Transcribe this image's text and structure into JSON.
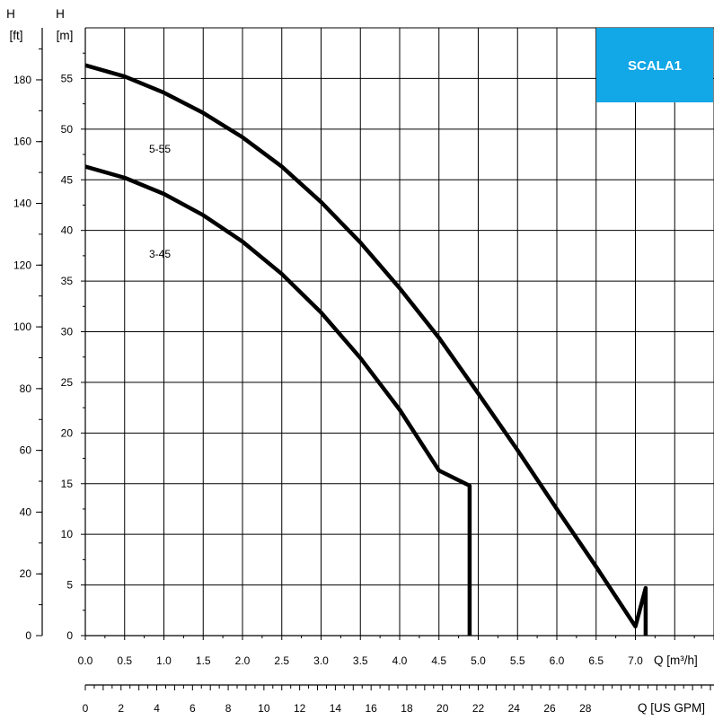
{
  "chart_data": {
    "type": "line",
    "badge": {
      "text": "SCALA1",
      "color": "#12a7e6",
      "position": "top-right"
    },
    "x_axis": {
      "label": "Q [m³/h]",
      "ticks": [
        0,
        0.5,
        1,
        1.5,
        2,
        2.5,
        3,
        3.5,
        4,
        4.5,
        5,
        5.5,
        6,
        6.5,
        7,
        7.5,
        8
      ],
      "tick_labels": [
        "0.0",
        "0.5",
        "1.0",
        "1.5",
        "2.0",
        "2.5",
        "3.0",
        "3.5",
        "4.0",
        "4.5",
        "5.0",
        "5.5",
        "6.0",
        "6.5",
        "7.0"
      ],
      "range": [
        0,
        8
      ],
      "grid": true
    },
    "x2_axis": {
      "label": "Q [US GPM]",
      "tick_labels": [
        "0",
        "2",
        "4",
        "6",
        "8",
        "10",
        "12",
        "14",
        "16",
        "18",
        "20",
        "22",
        "24",
        "26",
        "28"
      ],
      "major_values": [
        0,
        2,
        4,
        6,
        8,
        10,
        12,
        14,
        16,
        18,
        20,
        22,
        24,
        26,
        28
      ],
      "minor_step": 0.5,
      "range": [
        0,
        35.2
      ]
    },
    "y_axis": {
      "label_top": "H",
      "unit": "[m]",
      "ticks": [
        0,
        5,
        10,
        15,
        20,
        25,
        30,
        35,
        40,
        45,
        50,
        55
      ],
      "range": [
        0,
        60
      ],
      "grid": true
    },
    "y2_axis": {
      "label_top": "H",
      "unit": "[ft]",
      "ticks": [
        0,
        20,
        40,
        60,
        80,
        100,
        120,
        140,
        160,
        180
      ],
      "minor_step": 10,
      "range": [
        0,
        196.85
      ]
    },
    "series": [
      {
        "name": "5-55",
        "color": "#000000",
        "x": [
          0,
          0.5,
          1,
          1.5,
          2,
          2.5,
          3,
          3.5,
          4,
          4.5,
          5,
          5.5,
          6,
          6.5,
          7,
          7.13,
          7.13
        ],
        "y": [
          56.3,
          55.2,
          53.6,
          51.6,
          49.2,
          46.3,
          42.8,
          38.8,
          34.3,
          29.4,
          23.9,
          18.3,
          12.5,
          6.8,
          0.9,
          4.7,
          0
        ]
      },
      {
        "name": "3-45",
        "color": "#000000",
        "x": [
          0,
          0.5,
          1,
          1.5,
          2,
          2.5,
          3,
          3.5,
          4,
          4.5,
          4.89,
          4.89
        ],
        "y": [
          46.3,
          45.2,
          43.6,
          41.5,
          38.9,
          35.7,
          31.9,
          27.4,
          22.3,
          16.3,
          14.8,
          0
        ]
      }
    ]
  }
}
